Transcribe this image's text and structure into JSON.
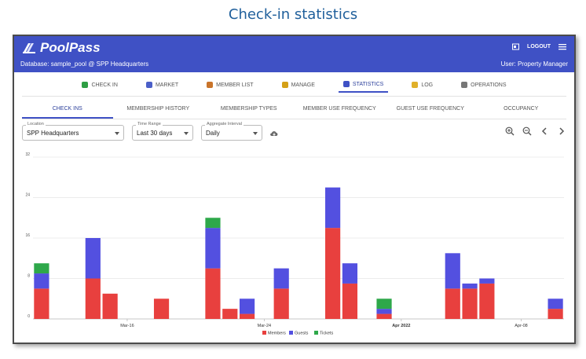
{
  "caption": "Check-in statistics",
  "app": {
    "brand": "PoolPass",
    "database": "Database: sample_pool @ SPP Headquarters",
    "user": "User: Property Manager",
    "logout": "LOGOUT"
  },
  "nav": [
    {
      "label": "CHECK IN",
      "icon": "check-icon",
      "color": "#2e9e44",
      "active": false
    },
    {
      "label": "MARKET",
      "icon": "cart-icon",
      "color": "#4b5fc8",
      "active": false
    },
    {
      "label": "MEMBER LIST",
      "icon": "list-icon",
      "color": "#c9742a",
      "active": false
    },
    {
      "label": "MANAGE",
      "icon": "tools-icon",
      "color": "#d4a017",
      "active": false
    },
    {
      "label": "STATISTICS",
      "icon": "bar-chart-icon",
      "color": "#3f51c5",
      "active": true
    },
    {
      "label": "LOG",
      "icon": "notepad-icon",
      "color": "#e0b02a",
      "active": false
    },
    {
      "label": "OPERATIONS",
      "icon": "gear-icon",
      "color": "#777777",
      "active": false
    }
  ],
  "subtabs": [
    {
      "label": "CHECK INS",
      "active": true
    },
    {
      "label": "MEMBERSHIP HISTORY",
      "active": false
    },
    {
      "label": "MEMBERSHIP TYPES",
      "active": false
    },
    {
      "label": "MEMBER USE FREQUENCY",
      "active": false
    },
    {
      "label": "GUEST USE FREQUENCY",
      "active": false
    },
    {
      "label": "OCCUPANCY",
      "active": false
    }
  ],
  "filters": {
    "location_label": "Location",
    "location_value": "SPP Headquarters",
    "range_label": "Time Range",
    "range_value": "Last 30 days",
    "interval_label": "Aggregate Interval",
    "interval_value": "Daily"
  },
  "chart_data": {
    "type": "bar",
    "stacked": true,
    "x_tick_labels": [
      "Mar-16",
      "Mar-24",
      "Apr 2022",
      "Apr-08"
    ],
    "y_ticks": [
      0,
      8,
      16,
      24,
      32
    ],
    "ylim": [
      0,
      32
    ],
    "grid": true,
    "legend_position": "bottom",
    "colors": {
      "members": "#e8403e",
      "guests": "#5350e0",
      "tickets": "#2ea84a"
    },
    "series_names": [
      "Members",
      "Guests",
      "Tickets"
    ],
    "days": 31,
    "members": [
      6,
      0,
      0,
      8,
      5,
      0,
      0,
      4,
      0,
      0,
      10,
      2,
      1,
      0,
      6,
      0,
      0,
      18,
      7,
      0,
      1,
      0,
      0,
      0,
      6,
      6,
      7,
      0,
      0,
      0,
      2
    ],
    "guests": [
      3,
      0,
      0,
      8,
      0,
      0,
      0,
      0,
      0,
      0,
      8,
      0,
      3,
      0,
      4,
      0,
      0,
      8,
      4,
      0,
      1,
      0,
      0,
      0,
      7,
      1,
      1,
      0,
      0,
      0,
      2
    ],
    "tickets": [
      2,
      0,
      0,
      0,
      0,
      0,
      0,
      0,
      0,
      0,
      2,
      0,
      0,
      0,
      0,
      0,
      0,
      0,
      0,
      0,
      2,
      0,
      0,
      0,
      0,
      0,
      0,
      0,
      0,
      0,
      0
    ]
  }
}
